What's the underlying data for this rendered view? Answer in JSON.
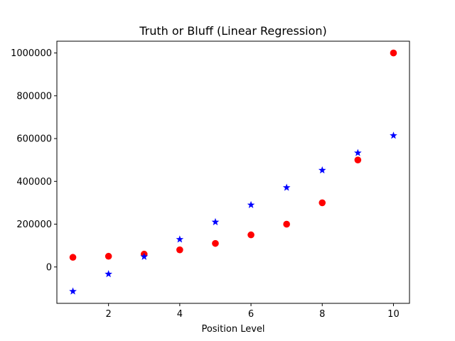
{
  "chart_data": {
    "type": "scatter",
    "title": "Truth or Bluff (Linear Regression)",
    "xlabel": "Position Level",
    "ylabel": "",
    "xlim": [
      0.55,
      10.45
    ],
    "ylim": [
      -170000,
      1055000
    ],
    "x_ticks": [
      2,
      4,
      6,
      8,
      10
    ],
    "y_ticks": [
      0,
      200000,
      400000,
      600000,
      800000,
      1000000
    ],
    "y_tick_labels": [
      "0",
      "200000",
      "400000",
      "600000",
      "800000",
      "1000000"
    ],
    "x_tick_labels": [
      "2",
      "4",
      "6",
      "8",
      "10"
    ],
    "grid": false,
    "series": [
      {
        "marker": "circle",
        "color": "#ff0000",
        "x": [
          1,
          2,
          3,
          4,
          5,
          6,
          7,
          8,
          9,
          10
        ],
        "y": [
          45000,
          50000,
          60000,
          80000,
          110000,
          150000,
          200000,
          300000,
          500000,
          1000000
        ]
      },
      {
        "marker": "star",
        "color": "#0000ff",
        "x": [
          1,
          2,
          3,
          4,
          5,
          6,
          7,
          8,
          9,
          10
        ],
        "y": [
          -114000,
          -33000,
          48000,
          129000,
          210000,
          290000,
          371000,
          452000,
          533000,
          614000
        ]
      }
    ]
  }
}
